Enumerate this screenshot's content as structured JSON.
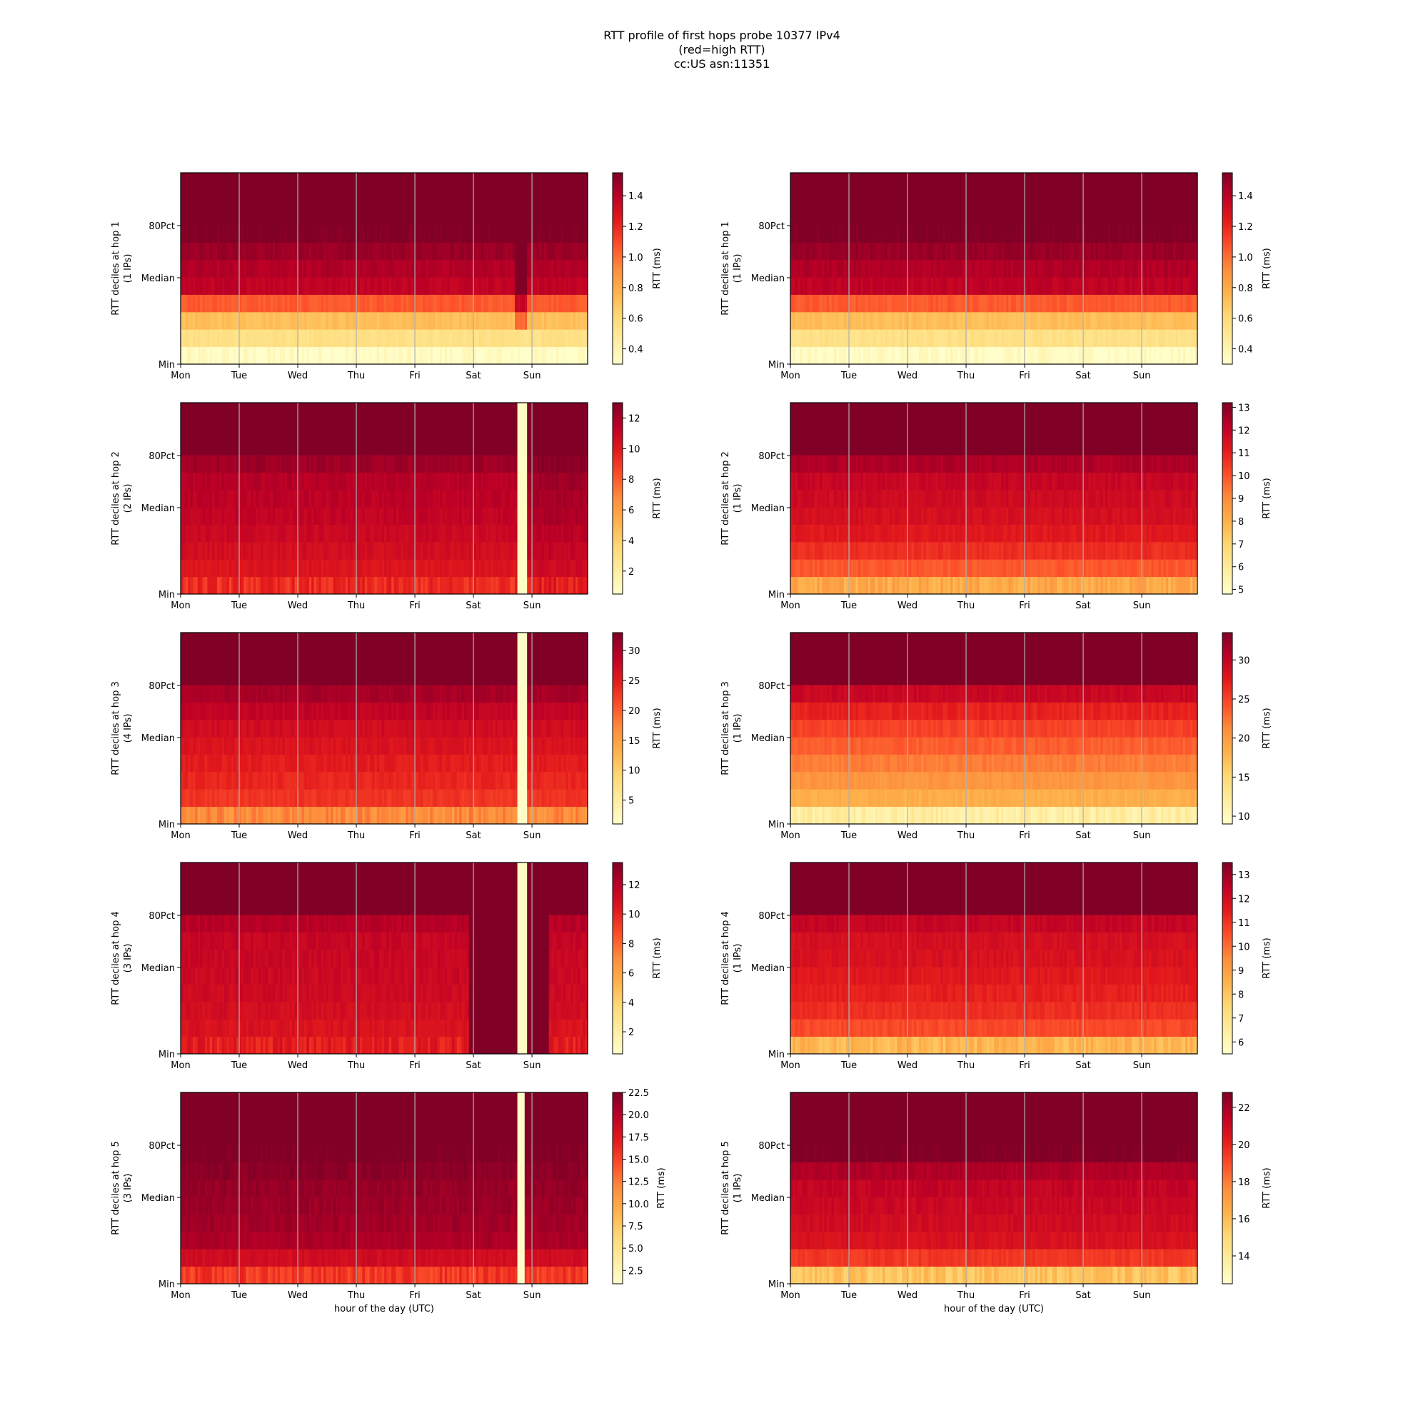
{
  "title_lines": [
    "RTT profile of first hops probe 10377 IPv4",
    "(red=high RTT)",
    "cc:US asn:11351"
  ],
  "common": {
    "x_tick_labels": [
      "Mon",
      "Tue",
      "Wed",
      "Thu",
      "Fri",
      "Sat",
      "Sun"
    ],
    "y_tick_labels": [
      "80Pct",
      "Median",
      "Min"
    ],
    "xlabel": "hour of the day (UTC)",
    "colorbar_label": "RTT (ms)",
    "colormap": [
      "#ffffcc",
      "#ffeda0",
      "#fed976",
      "#feb24c",
      "#fd8d3c",
      "#fc4e2a",
      "#e31a1c",
      "#bd0026",
      "#800026"
    ],
    "gridline_color": "#b0b0b0"
  },
  "chart_data": [
    {
      "type": "heatmap",
      "column": "left",
      "row": 1,
      "ylabel": "RTT deciles at hop 1",
      "ylabel2": "(1 IPs)",
      "cbar_ticks": [
        "0.4",
        "0.6",
        "0.8",
        "1.0",
        "1.2",
        "1.4"
      ],
      "cbar_range": [
        0.3,
        1.55
      ],
      "band_levels": [
        0.32,
        0.55,
        0.72,
        1.05,
        1.38,
        1.42,
        1.48,
        1.55,
        1.55,
        1.55
      ],
      "anomalies": [
        {
          "day_start": 5.75,
          "day_end": 5.95,
          "bands_from": 2,
          "delta": 0.3
        }
      ]
    },
    {
      "type": "heatmap",
      "column": "right",
      "row": 1,
      "ylabel": "RTT deciles at hop 1",
      "ylabel2": "(1 IPs)",
      "cbar_ticks": [
        "0.4",
        "0.6",
        "0.8",
        "1.0",
        "1.2",
        "1.4"
      ],
      "cbar_range": [
        0.3,
        1.55
      ],
      "band_levels": [
        0.32,
        0.55,
        0.72,
        1.05,
        1.38,
        1.42,
        1.48,
        1.55,
        1.55,
        1.55
      ],
      "anomalies": []
    },
    {
      "type": "heatmap",
      "column": "left",
      "row": 2,
      "ylabel": "RTT deciles at hop 2",
      "ylabel2": "(2 IPs)",
      "cbar_ticks": [
        "2",
        "4",
        "6",
        "8",
        "10",
        "12"
      ],
      "cbar_range": [
        0.5,
        13
      ],
      "band_levels": [
        9.3,
        10.2,
        10.6,
        10.9,
        11.2,
        11.4,
        11.6,
        12.2,
        13,
        13
      ],
      "anomalies": [
        {
          "day_start": 5.78,
          "day_end": 5.92,
          "bands_from": 0,
          "value": 0.8
        },
        {
          "day_start": 5.92,
          "day_end": 7.0,
          "bands_from": 0,
          "delta": 0.6
        }
      ]
    },
    {
      "type": "heatmap",
      "column": "right",
      "row": 2,
      "ylabel": "RTT deciles at hop 2",
      "ylabel2": "(1 IPs)",
      "cbar_ticks": [
        "5",
        "6",
        "7",
        "8",
        "9",
        "10",
        "11",
        "12",
        "13"
      ],
      "cbar_range": [
        4.8,
        13.2
      ],
      "band_levels": [
        8.2,
        9.9,
        10.7,
        11.2,
        11.5,
        11.7,
        11.9,
        12.4,
        13.2,
        13.2
      ],
      "anomalies": []
    },
    {
      "type": "heatmap",
      "column": "left",
      "row": 3,
      "ylabel": "RTT deciles at hop 3",
      "ylabel2": "(4 IPs)",
      "cbar_ticks": [
        "5",
        "10",
        "15",
        "20",
        "25",
        "30"
      ],
      "cbar_range": [
        1,
        33
      ],
      "band_levels": [
        17,
        23,
        24,
        25,
        26,
        27,
        28.5,
        30.5,
        33,
        33
      ],
      "anomalies": [
        {
          "day_start": 5.78,
          "day_end": 5.92,
          "bands_from": 0,
          "value": 1.5
        }
      ]
    },
    {
      "type": "heatmap",
      "column": "right",
      "row": 3,
      "ylabel": "RTT deciles at hop 3",
      "ylabel2": "(1 IPs)",
      "cbar_ticks": [
        "10",
        "15",
        "20",
        "25",
        "30"
      ],
      "cbar_range": [
        9,
        33.5
      ],
      "band_levels": [
        12,
        18.5,
        20.5,
        22,
        23.5,
        25,
        27,
        29.5,
        33.5,
        33.5
      ],
      "anomalies": []
    },
    {
      "type": "heatmap",
      "column": "left",
      "row": 4,
      "ylabel": "RTT deciles at hop 4",
      "ylabel2": "(3 IPs)",
      "cbar_ticks": [
        "2",
        "4",
        "6",
        "8",
        "10",
        "12"
      ],
      "cbar_range": [
        0.5,
        13.5
      ],
      "band_levels": [
        10.2,
        10.7,
        11.0,
        11.2,
        11.3,
        11.4,
        11.5,
        12.0,
        13.5,
        13.5
      ],
      "anomalies": [
        {
          "day_start": 4.95,
          "day_end": 5.78,
          "bands_from": 0,
          "value": 13.5
        },
        {
          "day_start": 5.78,
          "day_end": 5.92,
          "bands_from": 0,
          "value": 0.8
        },
        {
          "day_start": 5.92,
          "day_end": 6.3,
          "bands_from": 0,
          "value": 13.5
        }
      ]
    },
    {
      "type": "heatmap",
      "column": "right",
      "row": 4,
      "ylabel": "RTT deciles at hop 4",
      "ylabel2": "(1 IPs)",
      "cbar_ticks": [
        "6",
        "7",
        "8",
        "9",
        "10",
        "11",
        "12",
        "13"
      ],
      "cbar_range": [
        5.5,
        13.5
      ],
      "band_levels": [
        8.4,
        10.6,
        11.1,
        11.4,
        11.6,
        11.8,
        11.9,
        12.3,
        13.5,
        13.5
      ],
      "anomalies": []
    },
    {
      "type": "heatmap",
      "column": "left",
      "row": 5,
      "ylabel": "RTT deciles at hop 5",
      "ylabel2": "(3 IPs)",
      "cbar_ticks": [
        "2.5",
        "5.0",
        "7.5",
        "10.0",
        "12.5",
        "15.0",
        "17.5",
        "20.0",
        "22.5"
      ],
      "cbar_range": [
        1,
        22.5
      ],
      "band_levels": [
        15.5,
        18.5,
        20.5,
        21,
        21.3,
        21.5,
        22,
        22.5,
        22.5,
        22.5
      ],
      "anomalies": [
        {
          "day_start": 5.78,
          "day_end": 5.88,
          "bands_from": 0,
          "value": 1.2
        }
      ]
    },
    {
      "type": "heatmap",
      "column": "right",
      "row": 5,
      "ylabel": "RTT deciles at hop 5",
      "ylabel2": "(1 IPs)",
      "cbar_ticks": [
        "14",
        "16",
        "18",
        "20",
        "22"
      ],
      "cbar_range": [
        12.5,
        22.8
      ],
      "band_levels": [
        15.8,
        19.5,
        20.6,
        20.9,
        21.1,
        21.3,
        21.8,
        22.8,
        22.8,
        22.8
      ],
      "anomalies": []
    }
  ]
}
